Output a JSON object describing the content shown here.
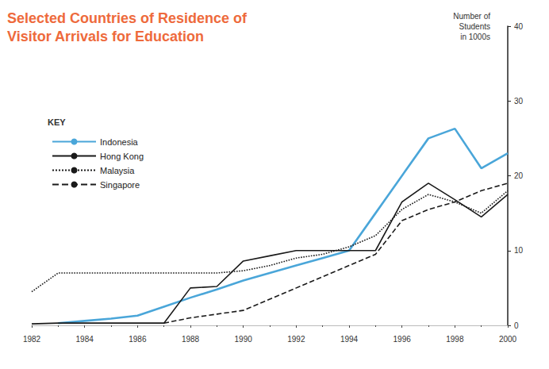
{
  "chart_data": {
    "type": "line",
    "title": "Selected Countries of Residence of\nVisitor Arrivals for Education",
    "y_label": "Number of\nStudents\nin 1000s",
    "legend_title": "KEY",
    "legend": "upper left",
    "grid": false,
    "x": [
      1982,
      1983,
      1984,
      1985,
      1986,
      1987,
      1988,
      1989,
      1990,
      1991,
      1992,
      1993,
      1994,
      1995,
      1996,
      1997,
      1998,
      1999,
      2000
    ],
    "xlim": [
      1982,
      2000
    ],
    "xticks": [
      1982,
      1984,
      1986,
      1988,
      1990,
      1992,
      1994,
      1996,
      1998,
      2000
    ],
    "ylim": [
      0,
      40
    ],
    "yticks": [
      0,
      10,
      20,
      30,
      40
    ],
    "series": [
      {
        "name": "Indonesia",
        "color": "#4aa6d9",
        "line_style": "solid",
        "values": [
          null,
          0.3,
          0.6,
          0.9,
          1.3,
          2.5,
          3.7,
          4.8,
          6,
          7,
          8,
          9,
          10,
          15,
          20,
          25,
          26.3,
          21,
          23
        ]
      },
      {
        "name": "Hong Kong",
        "color": "#1a1a1a",
        "line_style": "solid",
        "values": [
          0.2,
          0.3,
          0.3,
          0.3,
          0.3,
          0.3,
          5,
          5.2,
          8.6,
          9.3,
          10,
          10,
          10,
          10,
          16.5,
          19,
          16.8,
          14.5,
          17.5
        ]
      },
      {
        "name": "Malaysia",
        "color": "#1a1a1a",
        "line_style": "dotted",
        "values": [
          4.5,
          7,
          7,
          7,
          7,
          7,
          7,
          7,
          7.3,
          8,
          9,
          9.5,
          10.5,
          12,
          15.5,
          17.5,
          16.5,
          15,
          18
        ]
      },
      {
        "name": "Singapore",
        "color": "#1a1a1a",
        "line_style": "dashed",
        "values": [
          null,
          null,
          null,
          null,
          null,
          0.3,
          1,
          1.5,
          2,
          3.5,
          5,
          6.5,
          8,
          9.5,
          14,
          15.5,
          16.5,
          18,
          19
        ]
      }
    ]
  }
}
